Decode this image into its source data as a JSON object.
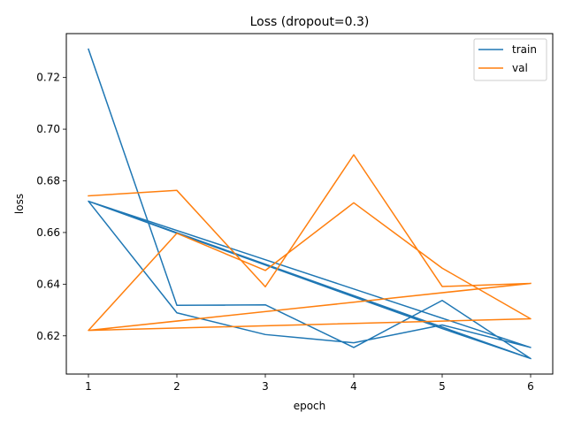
{
  "chart_data": {
    "type": "line",
    "title": "Loss (dropout=0.3)",
    "xlabel": "epoch",
    "ylabel": "loss",
    "xlim": [
      0.75,
      6.25
    ],
    "ylim": [
      0.6052,
      0.737
    ],
    "xticks": [
      1,
      2,
      3,
      4,
      5,
      6
    ],
    "xtick_labels": [
      "1",
      "2",
      "3",
      "4",
      "5",
      "6"
    ],
    "yticks": [
      0.62,
      0.64,
      0.66,
      0.68,
      0.7,
      0.72
    ],
    "ytick_labels": [
      "0.62",
      "0.64",
      "0.66",
      "0.68",
      "0.70",
      "0.72"
    ],
    "grid": false,
    "legend_position": "top-right",
    "series": [
      {
        "name": "train",
        "color": "#1f77b4",
        "x": [
          1,
          2,
          3,
          4,
          5,
          6,
          1,
          2,
          3,
          4,
          5,
          6,
          1,
          2,
          3,
          4,
          5,
          6
        ],
        "y": [
          0.731,
          0.6318,
          0.632,
          0.6155,
          0.6337,
          0.6112,
          0.6721,
          0.6289,
          0.6205,
          0.6173,
          0.6242,
          0.6155,
          0.6721,
          0.6597,
          0.6474,
          0.6351,
          0.6228,
          0.6112
        ]
      },
      {
        "name": "val",
        "color": "#ff7f0e",
        "x": [
          1,
          2,
          3,
          4,
          5,
          6,
          1,
          2,
          3,
          4,
          5,
          6,
          1,
          2,
          3,
          4,
          5,
          6
        ],
        "y": [
          0.6742,
          0.6763,
          0.639,
          0.6901,
          0.6391,
          0.6403,
          0.6221,
          0.6597,
          0.6453,
          0.6715,
          0.6462,
          0.6266,
          0.6221,
          0.6257,
          0.6294,
          0.633,
          0.6367,
          0.6403
        ]
      }
    ]
  }
}
